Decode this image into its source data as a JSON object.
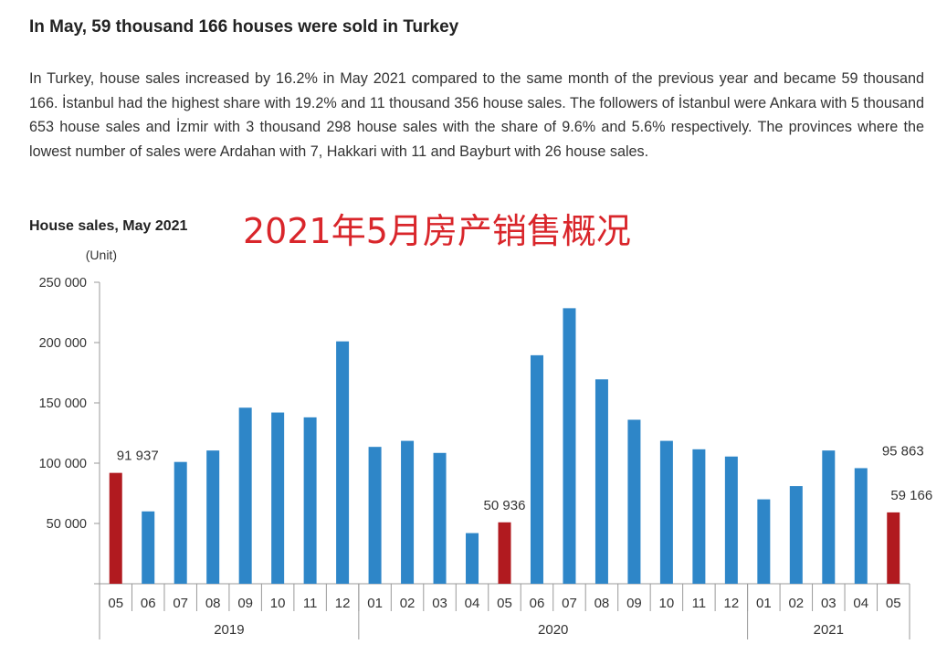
{
  "title": "In May, 59 thousand 166 houses were sold in Turkey",
  "paragraph": "In Turkey, house sales increased by 16.2% in May 2021 compared to the same month of the previous year and became 59 thousand 166. İstanbul had the highest share with 19.2% and 11 thousand 356 house sales. The followers of İstanbul were Ankara with 5 thousand 653 house sales and İzmir with 3 thousand 298 house sales with the share of 9.6% and 5.6% respectively. The provinces where the lowest number of sales were Ardahan with 7, Hakkari with 11 and Bayburt with 26 house sales.",
  "overlay_text": "2021年5月房产销售概况",
  "chart_data": {
    "type": "bar",
    "title": "House sales, May 2021",
    "ylabel": "(Unit)",
    "ylim": [
      0,
      250000
    ],
    "yticks": [
      "50 000",
      "100 000",
      "150 000",
      "200 000",
      "250 000"
    ],
    "ytick_values": [
      50000,
      100000,
      150000,
      200000,
      250000
    ],
    "categories": [
      "05",
      "06",
      "07",
      "08",
      "09",
      "10",
      "11",
      "12",
      "01",
      "02",
      "03",
      "04",
      "05",
      "06",
      "07",
      "08",
      "09",
      "10",
      "11",
      "12",
      "01",
      "02",
      "03",
      "04",
      "05"
    ],
    "years": [
      {
        "label": "2019",
        "count": 8
      },
      {
        "label": "2020",
        "count": 12
      },
      {
        "label": "2021",
        "count": 5
      }
    ],
    "values": [
      91937,
      60000,
      101000,
      110500,
      146000,
      142000,
      138000,
      201000,
      113500,
      118500,
      108500,
      42000,
      50936,
      189500,
      228500,
      169500,
      136000,
      118500,
      111500,
      105500,
      70000,
      81000,
      110500,
      95863,
      59166
    ],
    "highlighted": [
      0,
      12,
      24
    ],
    "data_labels": {
      "0": "91 937",
      "12": "50 936",
      "23": "95 863",
      "24": "59 166"
    },
    "colors": {
      "bar": "#2e86c8",
      "highlight": "#b11a1f",
      "axis": "#999999"
    },
    "grid": false
  }
}
